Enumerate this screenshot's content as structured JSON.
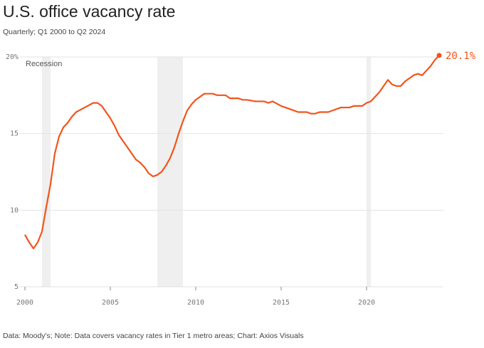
{
  "chart_data": {
    "type": "line",
    "title": "U.S. office vacancy rate",
    "subtitle": "Quarterly; Q1 2000 to Q2 2024",
    "footer": "Data: Moody's; Note: Data covers vacancy rates in Tier 1 metro areas; Chart: Axios Visuals",
    "recession_label": "Recession",
    "recessions": [
      [
        2001,
        2001.5
      ],
      [
        2007.75,
        2009.25
      ],
      [
        2020,
        2020.25
      ]
    ],
    "x": [
      2000,
      2000.25,
      2000.5,
      2000.75,
      2001,
      2001.25,
      2001.5,
      2001.75,
      2002,
      2002.25,
      2002.5,
      2002.75,
      2003,
      2003.5,
      2004,
      2004.25,
      2004.5,
      2004.75,
      2005,
      2005.25,
      2005.5,
      2005.75,
      2006,
      2006.25,
      2006.5,
      2006.75,
      2007,
      2007.25,
      2007.5,
      2007.75,
      2008,
      2008.25,
      2008.5,
      2008.75,
      2009,
      2009.25,
      2009.5,
      2009.75,
      2010,
      2010.25,
      2010.5,
      2011,
      2011.25,
      2011.75,
      2012,
      2012.5,
      2012.75,
      2013,
      2013.5,
      2014,
      2014.25,
      2014.5,
      2015,
      2015.5,
      2016,
      2016.5,
      2016.75,
      2017,
      2017.25,
      2017.75,
      2018,
      2018.5,
      2019,
      2019.25,
      2019.75,
      2020,
      2020.25,
      2020.5,
      2020.75,
      2021,
      2021.25,
      2021.5,
      2021.75,
      2022,
      2022.25,
      2022.5,
      2022.75,
      2023,
      2023.25,
      2023.5,
      2023.75,
      2024,
      2024.25
    ],
    "series": [
      {
        "name": "Vacancy rate",
        "color": "#f2541b",
        "values": [
          8.4,
          7.9,
          7.5,
          7.9,
          8.6,
          10.2,
          11.7,
          13.7,
          14.8,
          15.4,
          15.7,
          16.1,
          16.4,
          16.7,
          17.0,
          17.0,
          16.8,
          16.4,
          16.0,
          15.5,
          14.9,
          14.5,
          14.1,
          13.7,
          13.3,
          13.1,
          12.8,
          12.4,
          12.2,
          12.3,
          12.5,
          12.9,
          13.4,
          14.1,
          15.0,
          15.8,
          16.5,
          16.9,
          17.2,
          17.4,
          17.6,
          17.6,
          17.5,
          17.5,
          17.3,
          17.3,
          17.2,
          17.2,
          17.1,
          17.1,
          17.0,
          17.1,
          16.8,
          16.6,
          16.4,
          16.4,
          16.3,
          16.3,
          16.4,
          16.4,
          16.5,
          16.7,
          16.7,
          16.8,
          16.8,
          17.0,
          17.1,
          17.4,
          17.7,
          18.1,
          18.5,
          18.2,
          18.1,
          18.1,
          18.4,
          18.6,
          18.8,
          18.9,
          18.8,
          19.1,
          19.4,
          19.8,
          20.1
        ],
        "end_label": "20.1%"
      }
    ],
    "xlim": [
      2000,
      2024.5
    ],
    "xticks": [
      2000,
      2005,
      2010,
      2015,
      2020
    ],
    "ylim": [
      5,
      20
    ],
    "yticks": [
      5,
      10,
      15,
      {
        "value": 20,
        "label": "20%"
      }
    ],
    "grid": true
  }
}
